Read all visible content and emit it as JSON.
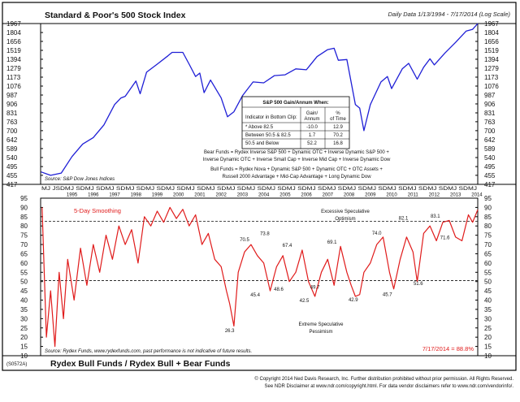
{
  "colors": {
    "upper_line": "#1f1fd6",
    "lower_line": "#e01b1b",
    "dash": "#111111",
    "frame": "#000000"
  },
  "chart_data": [
    {
      "type": "line",
      "title": "Standard & Poor's 500 Stock Index",
      "subtitle": "Daily Data 1/13/1994 - 7/17/2014 (Log Scale)",
      "source": "Source: S&P Dow Jones Indices",
      "y_scale": "log",
      "ylim": [
        417,
        1967
      ],
      "y_ticks": [
        1967,
        1804,
        1656,
        1519,
        1394,
        1279,
        1173,
        1076,
        987,
        906,
        831,
        763,
        700,
        642,
        589,
        540,
        495,
        455,
        417
      ],
      "xlim": [
        1994.03,
        2014.54
      ],
      "series": [
        {
          "x": [
            1994.05,
            1994.5,
            1995.0,
            1995.5,
            1996.0,
            1996.5,
            1997.0,
            1997.5,
            1997.8,
            1998.0,
            1998.5,
            1998.7,
            1999.0,
            1999.5,
            2000.0,
            2000.2,
            2000.7,
            2001.0,
            2001.3,
            2001.5,
            2001.7,
            2002.0,
            2002.5,
            2002.8,
            2003.1,
            2003.5,
            2004.0,
            2004.5,
            2005.0,
            2005.5,
            2006.0,
            2006.5,
            2007.0,
            2007.5,
            2007.8,
            2008.0,
            2008.4,
            2008.8,
            2009.0,
            2009.2,
            2009.5,
            2010.0,
            2010.3,
            2010.5,
            2011.0,
            2011.3,
            2011.7,
            2012.0,
            2012.3,
            2012.5,
            2013.0,
            2013.5,
            2014.0,
            2014.3,
            2014.54
          ],
          "y": [
            470,
            455,
            465,
            545,
            615,
            655,
            740,
            900,
            960,
            975,
            1130,
            1000,
            1230,
            1330,
            1440,
            1490,
            1490,
            1330,
            1180,
            1220,
            1010,
            1140,
            960,
            800,
            840,
            980,
            1120,
            1110,
            1190,
            1200,
            1270,
            1260,
            1430,
            1530,
            1550,
            1380,
            1390,
            900,
            870,
            700,
            900,
            1120,
            1180,
            1050,
            1270,
            1340,
            1150,
            1290,
            1400,
            1320,
            1480,
            1640,
            1830,
            1860,
            1967
          ]
        }
      ],
      "annotation_table": {
        "title": "S&P 500 Gain/Annum When:",
        "headers": [
          "Indicator in Bottom Clip:",
          "Gain/ Annum",
          "% of Time"
        ],
        "rows": [
          [
            "* Above 82.5",
            "-10.0",
            "12.9"
          ],
          [
            "Between 50.5 & 82.5",
            "1.7",
            "70.2"
          ],
          [
            "50.5 and Below",
            "52.2",
            "16.8"
          ]
        ]
      },
      "notes": [
        "Bear Funds = Rydex Inverse S&P 500 + Dynamic OTC + Inverse Dynamic S&P 500 +",
        "Inverse Dynamic OTC + Inverse Small Cap + Inverse Mid Cap + Inverse Dynamic Dow",
        "Bull Funds = Rydex Nova + Dynamic S&P 500 + Dynamic OTC + OTC Assets +",
        "Russell 2000 Advantage + Mid-Cap Advantage + Long Dynamic Dow"
      ]
    },
    {
      "type": "line",
      "title": "Rydex Bull Funds / Rydex Bull + Bear Funds",
      "code": "(S0572A)",
      "smoothing_label": "5-Day Smoothing",
      "source": "Source: Rydex Funds, www.rydexfunds.com, past performance is not indicative of future results.",
      "last_value_label": "7/17/2014 = 88.8%",
      "ylim": [
        10,
        95
      ],
      "y_ticks": [
        95,
        90,
        85,
        80,
        75,
        70,
        65,
        60,
        55,
        50,
        45,
        40,
        35,
        30,
        25,
        20,
        15,
        10
      ],
      "thresholds": [
        82.5,
        50.5
      ],
      "upper_note": [
        "Excessive Speculative",
        "Optimism"
      ],
      "lower_note": [
        "Extreme Speculative",
        "Pessimism"
      ],
      "month_letters": "MJ JSDMJ SDMJ SDMJ SDMJ SDMJ SDMJ SDMJ SDMJ SDMJ SDMJ SDMJ SDMJ SDMJ SDMJ SDMJ SDMJ SDMJ SDMJ SDMJ SDMJ SDMJ",
      "years": [
        "1995",
        "1996",
        "1997",
        "1998",
        "1999",
        "2000",
        "2001",
        "2002",
        "2003",
        "2004",
        "2005",
        "2006",
        "2007",
        "2008",
        "2009",
        "2010",
        "2011",
        "2012",
        "2013",
        "2014"
      ],
      "xlim": [
        1994.03,
        2014.54
      ],
      "series": [
        {
          "x": [
            1994.1,
            1994.3,
            1994.5,
            1994.7,
            1994.9,
            1995.1,
            1995.3,
            1995.6,
            1995.9,
            1996.2,
            1996.5,
            1996.8,
            1997.1,
            1997.4,
            1997.7,
            1998.0,
            1998.3,
            1998.6,
            1998.9,
            1999.2,
            1999.5,
            1999.8,
            2000.1,
            2000.4,
            2000.7,
            2001.0,
            2001.3,
            2001.6,
            2001.9,
            2002.2,
            2002.5,
            2002.75,
            2002.9,
            2003.1,
            2003.3,
            2003.6,
            2003.9,
            2004.2,
            2004.5,
            2004.8,
            2005.1,
            2005.4,
            2005.7,
            2006.0,
            2006.3,
            2006.6,
            2006.9,
            2007.2,
            2007.5,
            2007.8,
            2008.1,
            2008.4,
            2008.6,
            2008.8,
            2009.0,
            2009.2,
            2009.5,
            2009.8,
            2010.1,
            2010.4,
            2010.6,
            2010.9,
            2011.2,
            2011.5,
            2011.7,
            2012.0,
            2012.3,
            2012.6,
            2012.9,
            2013.2,
            2013.5,
            2013.8,
            2014.1,
            2014.3,
            2014.54
          ],
          "y": [
            90,
            20,
            45,
            15,
            55,
            30,
            62,
            40,
            68,
            48,
            70,
            55,
            75,
            62,
            80,
            70,
            78,
            60,
            85,
            80,
            88,
            82,
            90,
            84,
            89,
            80,
            86,
            70,
            76,
            62,
            58,
            45,
            38,
            26,
            55,
            66,
            70,
            64,
            60,
            45,
            58,
            64,
            50,
            55,
            67,
            50,
            42,
            55,
            62,
            48,
            69,
            55,
            48,
            42,
            43,
            55,
            60,
            70,
            74,
            55,
            46,
            62,
            74,
            66,
            50,
            76,
            80,
            72,
            82,
            83,
            74,
            72,
            86,
            82,
            88.8
          ]
        }
      ],
      "labels": [
        {
          "x": 2002.9,
          "y": 26.3,
          "text": "26.3"
        },
        {
          "x": 2003.6,
          "y": 70.5,
          "text": "70.5"
        },
        {
          "x": 2004.1,
          "y": 45.4,
          "text": "45.4"
        },
        {
          "x": 2004.55,
          "y": 73.8,
          "text": "73.8"
        },
        {
          "x": 2005.2,
          "y": 48.6,
          "text": "48.6"
        },
        {
          "x": 2005.6,
          "y": 67.4,
          "text": "67.4"
        },
        {
          "x": 2006.4,
          "y": 42.5,
          "text": "42.5"
        },
        {
          "x": 2006.9,
          "y": 49.7,
          "text": "49.7"
        },
        {
          "x": 2007.7,
          "y": 69.1,
          "text": "69.1"
        },
        {
          "x": 2008.7,
          "y": 42.9,
          "text": "42.9"
        },
        {
          "x": 2009.8,
          "y": 74.0,
          "text": "74.0"
        },
        {
          "x": 2010.3,
          "y": 45.7,
          "text": "45.7"
        },
        {
          "x": 2011.05,
          "y": 82.1,
          "text": "82.1"
        },
        {
          "x": 2011.75,
          "y": 51.6,
          "text": "51.6"
        },
        {
          "x": 2012.55,
          "y": 83.1,
          "text": "83.1"
        },
        {
          "x": 2013.0,
          "y": 71.6,
          "text": "71.6"
        }
      ]
    }
  ],
  "footer": {
    "line1": "© Copyright 2014 Ned Davis Research, Inc. Further distribution prohibited without prior permission. All Rights Reserved.",
    "line2": "See NDR Disclaimer at www.ndr.com/copyright.html. For data vendor disclaimers refer to www.ndr.com/vendorinfo/."
  }
}
